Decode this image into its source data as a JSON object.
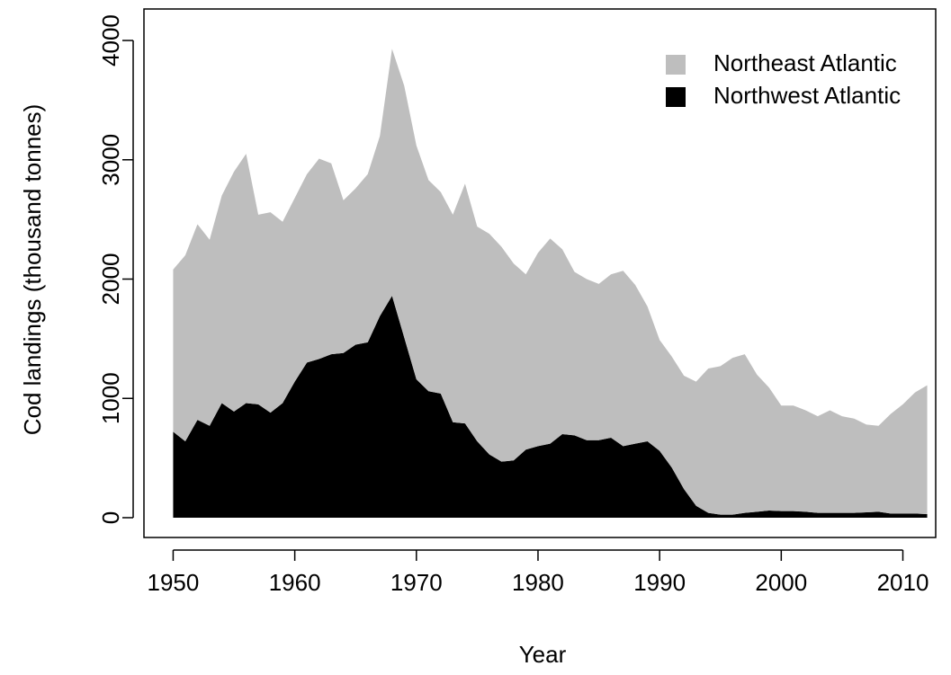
{
  "chart_data": {
    "type": "stacked_area",
    "xlabel": "Year",
    "ylabel": "Cod landings (thousand tonnes)",
    "x": [
      1950,
      1951,
      1952,
      1953,
      1954,
      1955,
      1956,
      1957,
      1958,
      1959,
      1960,
      1961,
      1962,
      1963,
      1964,
      1965,
      1966,
      1967,
      1968,
      1969,
      1970,
      1971,
      1972,
      1973,
      1974,
      1975,
      1976,
      1977,
      1978,
      1979,
      1980,
      1981,
      1982,
      1983,
      1984,
      1985,
      1986,
      1987,
      1988,
      1989,
      1990,
      1991,
      1992,
      1993,
      1994,
      1995,
      1996,
      1997,
      1998,
      1999,
      2000,
      2001,
      2002,
      2003,
      2004,
      2005,
      2006,
      2007,
      2008,
      2009,
      2010,
      2011,
      2012
    ],
    "series": [
      {
        "name": "Northeast Atlantic",
        "color": "#bebebe",
        "values": [
          1360,
          1560,
          1640,
          1560,
          1740,
          2010,
          2090,
          1590,
          1680,
          1520,
          1540,
          1580,
          1680,
          1600,
          1280,
          1310,
          1410,
          1510,
          2070,
          2110,
          1960,
          1770,
          1690,
          1740,
          2010,
          1800,
          1850,
          1800,
          1650,
          1470,
          1620,
          1720,
          1550,
          1370,
          1350,
          1310,
          1370,
          1470,
          1330,
          1130,
          930,
          930,
          950,
          1040,
          1210,
          1245,
          1315,
          1330,
          1150,
          1030,
          885,
          885,
          850,
          810,
          860,
          810,
          790,
          735,
          720,
          835,
          915,
          1015,
          1080
        ]
      },
      {
        "name": "Northwest Atlantic",
        "color": "#000000",
        "values": [
          720,
          640,
          820,
          770,
          960,
          890,
          960,
          950,
          880,
          960,
          1140,
          1300,
          1330,
          1370,
          1380,
          1450,
          1470,
          1690,
          1860,
          1510,
          1160,
          1060,
          1040,
          800,
          790,
          640,
          530,
          470,
          480,
          570,
          600,
          620,
          700,
          690,
          650,
          650,
          670,
          600,
          620,
          640,
          560,
          420,
          240,
          100,
          40,
          25,
          25,
          40,
          50,
          60,
          55,
          55,
          50,
          40,
          40,
          40,
          40,
          45,
          50,
          35,
          35,
          35,
          30
        ]
      }
    ],
    "xlim": [
      1947.6,
      2012.7
    ],
    "xticks": [
      1950,
      1960,
      1970,
      1980,
      1990,
      2000,
      2010
    ],
    "ylim": [
      -166,
      4264
    ],
    "yticks": [
      0,
      1000,
      2000,
      3000,
      4000
    ],
    "legend": "top-right"
  }
}
